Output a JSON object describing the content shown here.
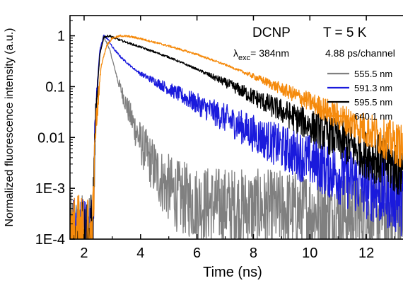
{
  "chart_data": {
    "type": "line",
    "title_left": "DCNP",
    "title_right": "T = 5 K",
    "excitation": {
      "symbol": "λ",
      "subscript": "exc",
      "value": "= 384nm"
    },
    "resolution": "4.88 ps/channel",
    "xlabel": "Time (ns)",
    "ylabel": "Normalized fluorescence intensity (a.u.)",
    "xlim": [
      1.5,
      13.3
    ],
    "ylim": [
      0.0001,
      2.5
    ],
    "yscale": "log",
    "xticks": [
      2,
      4,
      6,
      8,
      10,
      12
    ],
    "yticks": [
      {
        "value": 1,
        "label": "1"
      },
      {
        "value": 0.1,
        "label": "0.1"
      },
      {
        "value": 0.01,
        "label": "0.01"
      },
      {
        "value": 0.001,
        "label": "1E-3"
      },
      {
        "value": 0.0001,
        "label": "1E-4"
      }
    ],
    "legend_position": "right, below header text",
    "series": [
      {
        "name": "555.5 nm",
        "color": "#808080",
        "x": [
          1.6,
          2.3,
          2.4,
          2.55,
          2.68,
          2.9,
          3.2,
          3.6,
          4.0,
          4.4,
          4.8,
          5.3,
          6.0,
          7.0,
          8.0,
          9.0,
          10.0,
          11.0,
          12.0,
          13.3
        ],
        "y": [
          0.0001,
          0.0001,
          0.02,
          0.4,
          1.0,
          0.55,
          0.13,
          0.03,
          0.008,
          0.003,
          0.0013,
          0.0007,
          0.0005,
          0.00045,
          0.0004,
          0.00038,
          0.00035,
          0.00032,
          0.0003,
          0.0003
        ]
      },
      {
        "name": "591.3 nm",
        "color": "#1a1adc",
        "x": [
          1.6,
          2.3,
          2.4,
          2.55,
          2.7,
          2.85,
          3.0,
          3.3,
          3.7,
          4.0,
          5.0,
          6.0,
          7.0,
          8.0,
          9.0,
          10.0,
          11.0,
          12.0,
          13.3
        ],
        "y": [
          0.0001,
          0.0001,
          0.03,
          0.5,
          1.0,
          0.85,
          0.6,
          0.38,
          0.24,
          0.18,
          0.09,
          0.046,
          0.024,
          0.012,
          0.0064,
          0.0035,
          0.0019,
          0.0011,
          0.0006
        ]
      },
      {
        "name": "595.5 nm",
        "color": "#000000",
        "x": [
          1.6,
          2.3,
          2.4,
          2.55,
          2.7,
          2.9,
          3.2,
          4.0,
          5.0,
          6.0,
          7.0,
          8.0,
          9.0,
          10.0,
          11.0,
          12.0,
          13.3
        ],
        "y": [
          0.0001,
          0.0001,
          0.02,
          0.4,
          0.95,
          1.0,
          0.85,
          0.6,
          0.38,
          0.22,
          0.12,
          0.063,
          0.033,
          0.017,
          0.009,
          0.0047,
          0.0022
        ]
      },
      {
        "name": "640.1 nm",
        "color": "#f58a0c",
        "x": [
          1.6,
          2.3,
          2.4,
          2.6,
          2.8,
          3.0,
          3.3,
          3.6,
          4.0,
          5.0,
          6.0,
          7.0,
          8.0,
          9.0,
          10.0,
          11.0,
          12.0,
          13.3
        ],
        "y": [
          0.0001,
          0.0001,
          0.012,
          0.25,
          0.65,
          0.9,
          1.0,
          0.97,
          0.88,
          0.63,
          0.43,
          0.27,
          0.16,
          0.09,
          0.05,
          0.026,
          0.014,
          0.0065
        ]
      }
    ]
  }
}
